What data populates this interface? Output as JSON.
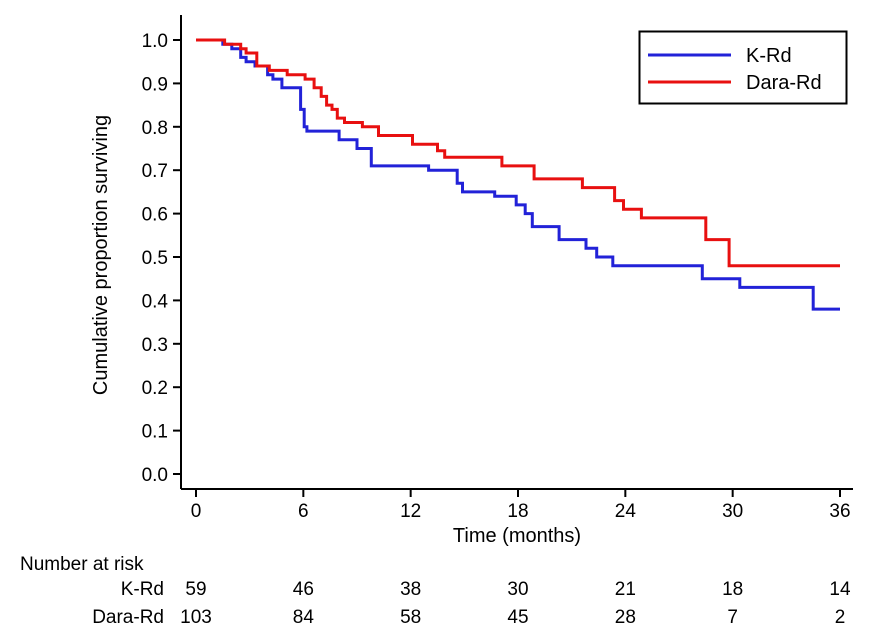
{
  "figure": {
    "background": "#ffffff",
    "text_color": "#000000"
  },
  "chart_data": {
    "type": "line",
    "subtype": "kaplan-meier-step",
    "title": "",
    "xlabel": "Time (months)",
    "ylabel": "Cumulative proportion surviving",
    "xlim": [
      0,
      36
    ],
    "ylim": [
      0.0,
      1.0
    ],
    "xticks": [
      0,
      6,
      12,
      18,
      24,
      30,
      36
    ],
    "yticks": [
      "1.0",
      "0.9",
      "0.8",
      "0.7",
      "0.6",
      "0.5",
      "0.4",
      "0.3",
      "0.2",
      "0.1",
      "0.0"
    ],
    "grid": false,
    "legend": {
      "position": "top-right",
      "entries": [
        {
          "label": "K-Rd",
          "color": "#2222d8"
        },
        {
          "label": "Dara-Rd",
          "color": "#e81010"
        }
      ]
    },
    "series": [
      {
        "name": "K-Rd",
        "color": "#2222d8",
        "points": [
          [
            0,
            1.0
          ],
          [
            1.5,
            0.99
          ],
          [
            2.0,
            0.98
          ],
          [
            2.5,
            0.96
          ],
          [
            2.8,
            0.95
          ],
          [
            3.3,
            0.94
          ],
          [
            4.0,
            0.92
          ],
          [
            4.3,
            0.91
          ],
          [
            4.8,
            0.89
          ],
          [
            5.85,
            0.84
          ],
          [
            6.05,
            0.8
          ],
          [
            6.2,
            0.79
          ],
          [
            8.0,
            0.77
          ],
          [
            9.0,
            0.75
          ],
          [
            9.8,
            0.71
          ],
          [
            13.0,
            0.7
          ],
          [
            14.6,
            0.67
          ],
          [
            14.9,
            0.65
          ],
          [
            16.7,
            0.64
          ],
          [
            17.9,
            0.62
          ],
          [
            18.4,
            0.6
          ],
          [
            18.8,
            0.57
          ],
          [
            20.3,
            0.54
          ],
          [
            21.8,
            0.52
          ],
          [
            22.4,
            0.5
          ],
          [
            23.3,
            0.48
          ],
          [
            28.3,
            0.45
          ],
          [
            30.4,
            0.43
          ],
          [
            34.5,
            0.38
          ]
        ]
      },
      {
        "name": "Dara-Rd",
        "color": "#e81010",
        "points": [
          [
            0,
            1.0
          ],
          [
            1.6,
            0.99
          ],
          [
            2.5,
            0.98
          ],
          [
            2.8,
            0.97
          ],
          [
            3.4,
            0.94
          ],
          [
            4.1,
            0.93
          ],
          [
            5.1,
            0.92
          ],
          [
            6.1,
            0.91
          ],
          [
            6.6,
            0.89
          ],
          [
            7.0,
            0.87
          ],
          [
            7.3,
            0.85
          ],
          [
            7.6,
            0.84
          ],
          [
            7.9,
            0.82
          ],
          [
            8.3,
            0.81
          ],
          [
            9.3,
            0.8
          ],
          [
            10.2,
            0.78
          ],
          [
            12.1,
            0.76
          ],
          [
            13.5,
            0.745
          ],
          [
            13.9,
            0.73
          ],
          [
            17.1,
            0.71
          ],
          [
            18.9,
            0.68
          ],
          [
            21.6,
            0.66
          ],
          [
            23.4,
            0.63
          ],
          [
            23.9,
            0.61
          ],
          [
            24.9,
            0.59
          ],
          [
            28.5,
            0.54
          ],
          [
            29.8,
            0.48
          ]
        ]
      }
    ]
  },
  "number_at_risk": {
    "title": "Number at risk",
    "time_points": [
      0,
      6,
      12,
      18,
      24,
      30,
      36
    ],
    "rows": [
      {
        "label": "K-Rd",
        "counts": [
          "59",
          "46",
          "38",
          "30",
          "21",
          "18",
          "14"
        ]
      },
      {
        "label": "Dara-Rd",
        "counts": [
          "103",
          "84",
          "58",
          "45",
          "28",
          "7",
          "2"
        ]
      }
    ]
  }
}
